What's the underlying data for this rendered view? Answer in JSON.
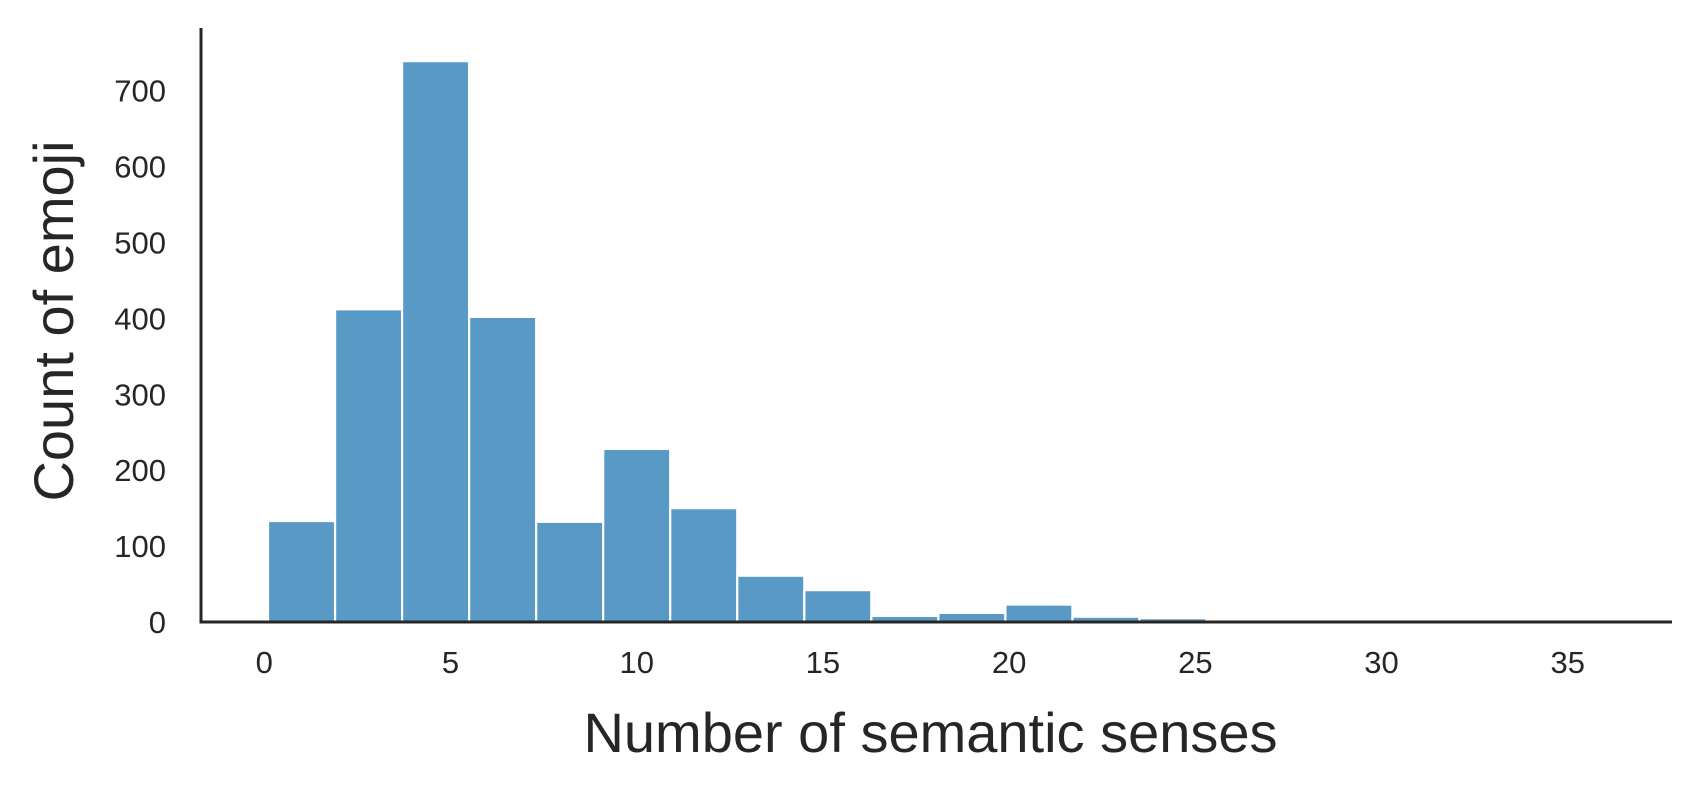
{
  "chart_data": {
    "type": "bar",
    "title": "",
    "xlabel": "Number of semantic senses",
    "ylabel": "Count of emoji",
    "bin_edges": [
      0.1,
      1.9,
      3.7,
      5.5,
      7.3,
      9.1,
      10.9,
      12.7,
      14.5,
      16.3,
      18.1,
      19.9,
      21.7,
      23.5,
      25.3,
      27.1,
      28.9,
      30.7,
      32.5,
      34.3,
      36.1
    ],
    "values": [
      133,
      412,
      739,
      402,
      132,
      228,
      150,
      61,
      42,
      8,
      12,
      23,
      7,
      5,
      1,
      1,
      1,
      1,
      1,
      1
    ],
    "xlim": [
      -1.7,
      37.8
    ],
    "ylim": [
      0,
      780
    ],
    "xticks": [
      0,
      5,
      10,
      15,
      20,
      25,
      30,
      35
    ],
    "yticks": [
      0,
      100,
      200,
      300,
      400,
      500,
      600,
      700
    ],
    "grid": false,
    "legend": "none",
    "bar_color": "#5899c6",
    "bar_edge_color": "#ffffff",
    "axis_color": "#262626"
  }
}
